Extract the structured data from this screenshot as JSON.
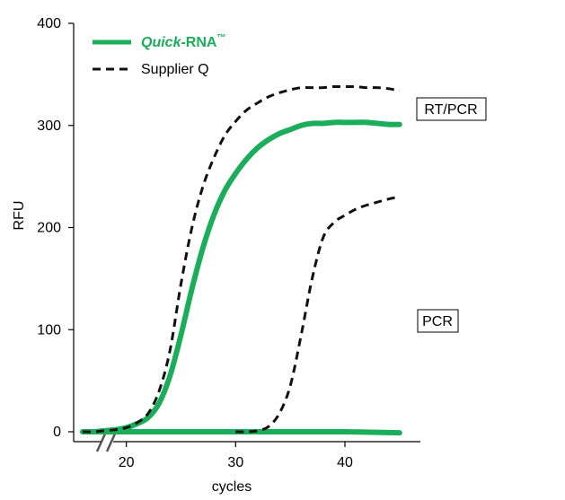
{
  "chart_data": {
    "type": "line",
    "title": "",
    "xlabel": "cycles",
    "ylabel": "RFU",
    "xlim": [
      16,
      46
    ],
    "ylim": [
      0,
      400
    ],
    "x_axis_break": true,
    "x_ticks": [
      "20",
      "30",
      "40"
    ],
    "y_ticks": [
      "0",
      "100",
      "200",
      "300",
      "400"
    ],
    "legend": {
      "position": "top-left",
      "entries": [
        {
          "name_italic": "Quick",
          "name_rest": "-RNA",
          "trademark": "™",
          "color": "#1aad5a",
          "style": "solid"
        },
        {
          "name": "Supplier Q",
          "color": "#111111",
          "style": "dashed"
        }
      ]
    },
    "annotations": [
      "RT/PCR",
      "PCR"
    ],
    "series": [
      {
        "legend": "Quick-RNA™",
        "label": "RT/PCR",
        "color": "#1aad5a",
        "style": "solid",
        "x": [
          16,
          17,
          18,
          19,
          20,
          21,
          22,
          23,
          24,
          25,
          26,
          27,
          28,
          29,
          30,
          31,
          32,
          33,
          34,
          35,
          36,
          37,
          38,
          39,
          40,
          41,
          42,
          43,
          44,
          45
        ],
        "y": [
          0,
          0,
          1,
          2,
          4,
          8,
          14,
          28,
          55,
          95,
          140,
          180,
          212,
          236,
          253,
          267,
          278,
          286,
          292,
          296,
          300,
          302,
          302,
          303,
          303,
          303,
          303,
          302,
          301,
          301
        ]
      },
      {
        "legend": "Quick-RNA™",
        "label": "PCR",
        "color": "#1aad5a",
        "style": "solid",
        "x": [
          16,
          20,
          25,
          30,
          35,
          40,
          45
        ],
        "y": [
          0,
          0,
          0,
          0,
          0,
          0,
          -1
        ]
      },
      {
        "legend": "Supplier Q",
        "label": "RT/PCR",
        "color": "#111111",
        "style": "dashed",
        "x": [
          16,
          17,
          18,
          19,
          20,
          21,
          22,
          23,
          24,
          25,
          26,
          27,
          28,
          29,
          30,
          31,
          32,
          33,
          34,
          35,
          36,
          37,
          38,
          39,
          40,
          41,
          42,
          43,
          44,
          45
        ],
        "y": [
          0,
          0,
          1,
          2,
          4,
          9,
          18,
          40,
          80,
          145,
          200,
          240,
          268,
          290,
          304,
          315,
          322,
          328,
          332,
          335,
          337,
          337,
          337,
          338,
          338,
          338,
          337,
          337,
          336,
          334
        ]
      },
      {
        "legend": "Supplier Q",
        "label": "PCR",
        "color": "#111111",
        "style": "dashed",
        "x": [
          30,
          31,
          32,
          33,
          34,
          35,
          36,
          37,
          38,
          39,
          40,
          41,
          42,
          43,
          44,
          45
        ],
        "y": [
          0,
          0,
          1,
          5,
          18,
          45,
          95,
          150,
          190,
          205,
          212,
          218,
          222,
          225,
          228,
          230
        ]
      }
    ]
  }
}
